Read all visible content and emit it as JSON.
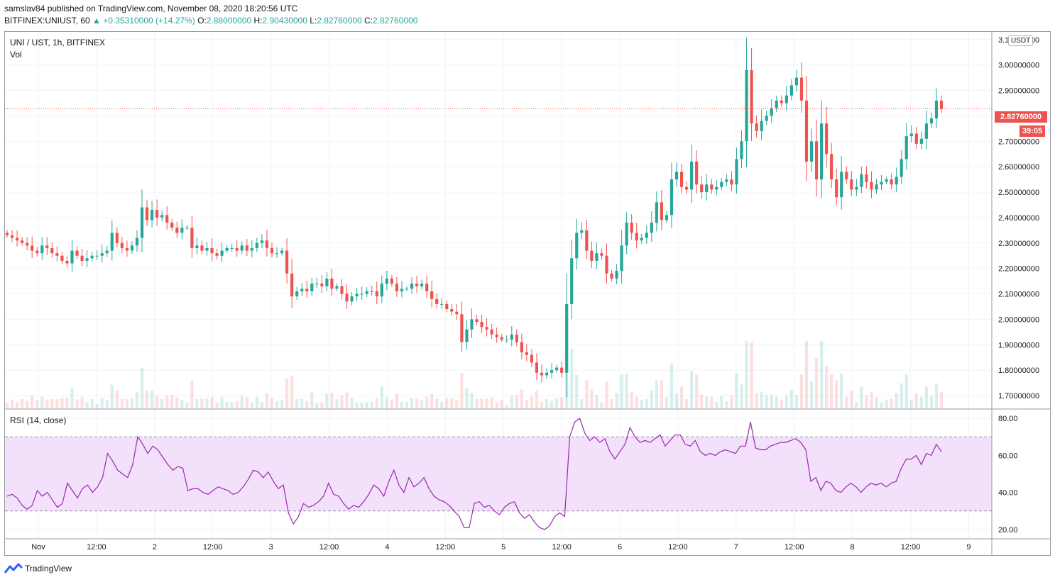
{
  "header": {
    "published": "samslav84 published on TradingView.com, November 08, 2020 18:20:56 UTC",
    "symbol": "BITFINEX:UNIUST, 60",
    "change": "+0.35310000 (+14.27%)",
    "o_label": "O:",
    "o_value": "2.88000000",
    "h_label": "H:",
    "h_value": "2.90430000",
    "l_label": "L:",
    "l_value": "2.82760000",
    "c_label": "C:",
    "c_value": "2.82760000"
  },
  "legend": {
    "main_title": "UNI / UST, 1h, BITFINEX",
    "vol_label": "Vol",
    "rsi_title": "RSI (14, close)",
    "currency": "USDT"
  },
  "price_badge": {
    "price": "2.82760000",
    "timer": "39:05"
  },
  "brand": {
    "name": "TradingView"
  },
  "colors": {
    "up": "#26a69a",
    "down": "#ef5350",
    "rsi_line": "#9c27b0",
    "rsi_band": "#f3e0fb",
    "grid": "#f0f3fa"
  },
  "chart_data": [
    {
      "type": "candlestick",
      "series_name": "UNI / UST, 1h, BITFINEX",
      "ylim": [
        1.65,
        3.13
      ],
      "y_ticks": [
        "1.70000000",
        "1.80000000",
        "1.90000000",
        "2.00000000",
        "2.10000000",
        "2.20000000",
        "2.30000000",
        "2.40000000",
        "2.50000000",
        "2.60000000",
        "2.70000000",
        "2.80000000",
        "2.90000000",
        "3.00000000",
        "3.10000000"
      ],
      "x_tick_labels": [
        "Nov",
        "12:00",
        "2",
        "12:00",
        "3",
        "12:00",
        "4",
        "12:00",
        "5",
        "12:00",
        "6",
        "12:00",
        "7",
        "12:00",
        "8",
        "12:00",
        "9"
      ],
      "last_price": 2.8276,
      "close": [
        2.33,
        2.32,
        2.31,
        2.3,
        2.29,
        2.27,
        2.26,
        2.29,
        2.28,
        2.26,
        2.25,
        2.23,
        2.22,
        2.27,
        2.25,
        2.23,
        2.24,
        2.25,
        2.25,
        2.26,
        2.27,
        2.34,
        2.3,
        2.28,
        2.27,
        2.29,
        2.32,
        2.44,
        2.39,
        2.43,
        2.4,
        2.41,
        2.38,
        2.36,
        2.34,
        2.36,
        2.36,
        2.28,
        2.29,
        2.27,
        2.28,
        2.26,
        2.25,
        2.27,
        2.28,
        2.28,
        2.27,
        2.29,
        2.27,
        2.28,
        2.3,
        2.31,
        2.28,
        2.26,
        2.26,
        2.27,
        2.18,
        2.09,
        2.11,
        2.12,
        2.11,
        2.14,
        2.14,
        2.13,
        2.16,
        2.12,
        2.13,
        2.1,
        2.07,
        2.09,
        2.1,
        2.1,
        2.11,
        2.11,
        2.09,
        2.14,
        2.16,
        2.14,
        2.11,
        2.12,
        2.12,
        2.14,
        2.13,
        2.14,
        2.11,
        2.08,
        2.06,
        2.06,
        2.04,
        2.03,
        2.02,
        1.91,
        1.96,
        2.0,
        1.99,
        1.97,
        1.96,
        1.94,
        1.93,
        1.92,
        1.92,
        1.94,
        1.91,
        1.87,
        1.86,
        1.83,
        1.79,
        1.78,
        1.79,
        1.8,
        1.81,
        1.79,
        2.06,
        2.24,
        2.34,
        2.35,
        2.27,
        2.23,
        2.26,
        2.25,
        2.18,
        2.16,
        2.19,
        2.29,
        2.38,
        2.34,
        2.31,
        2.32,
        2.34,
        2.38,
        2.46,
        2.39,
        2.41,
        2.55,
        2.58,
        2.52,
        2.51,
        2.62,
        2.53,
        2.5,
        2.53,
        2.51,
        2.52,
        2.54,
        2.55,
        2.53,
        2.63,
        2.7,
        2.98,
        2.77,
        2.74,
        2.78,
        2.8,
        2.83,
        2.86,
        2.85,
        2.88,
        2.92,
        2.95,
        2.86,
        2.62,
        2.7,
        2.55,
        2.77,
        2.65,
        2.55,
        2.48,
        2.58,
        2.55,
        2.51,
        2.52,
        2.57,
        2.54,
        2.51,
        2.53,
        2.54,
        2.55,
        2.53,
        2.56,
        2.63,
        2.72,
        2.73,
        2.69,
        2.71,
        2.77,
        2.79,
        2.86,
        2.8276
      ],
      "volume_note": "relative volume bars shown in the lower part of the main pane"
    },
    {
      "type": "line",
      "series_name": "RSI (14, close)",
      "ylim": [
        15,
        85
      ],
      "y_ticks": [
        "20.00",
        "40.00",
        "60.00",
        "80.00"
      ],
      "bands": [
        30,
        70
      ],
      "values": [
        38,
        39,
        37,
        33,
        31,
        33,
        41,
        38,
        40,
        36,
        32,
        34,
        45,
        41,
        37,
        42,
        44,
        40,
        43,
        48,
        61,
        57,
        52,
        50,
        48,
        55,
        70,
        66,
        61,
        65,
        63,
        59,
        55,
        52,
        54,
        53,
        41,
        42,
        42,
        40,
        39,
        41,
        43,
        42,
        41,
        39,
        40,
        43,
        47,
        52,
        51,
        48,
        51,
        46,
        42,
        44,
        29,
        23,
        27,
        34,
        32,
        33,
        35,
        38,
        45,
        39,
        38,
        34,
        31,
        33,
        32,
        35,
        39,
        44,
        42,
        38,
        46,
        52,
        44,
        40,
        48,
        43,
        45,
        48,
        42,
        38,
        36,
        35,
        33,
        30,
        27,
        21,
        21,
        34,
        35,
        32,
        33,
        30,
        28,
        32,
        34,
        35,
        29,
        26,
        28,
        24,
        21,
        20,
        22,
        27,
        29,
        27,
        70,
        78,
        80,
        72,
        68,
        70,
        67,
        69,
        62,
        58,
        62,
        66,
        75,
        70,
        67,
        68,
        67,
        69,
        71,
        65,
        68,
        71,
        71,
        66,
        65,
        68,
        62,
        60,
        61,
        60,
        62,
        63,
        62,
        61,
        65,
        65,
        78,
        64,
        63,
        63,
        65,
        66,
        67,
        67,
        68,
        69,
        67,
        63,
        46,
        48,
        41,
        46,
        45,
        41,
        40,
        43,
        45,
        43,
        40,
        43,
        45,
        44,
        45,
        43,
        45,
        46,
        53,
        58,
        58,
        60,
        55,
        61,
        60,
        66,
        62
      ]
    }
  ]
}
